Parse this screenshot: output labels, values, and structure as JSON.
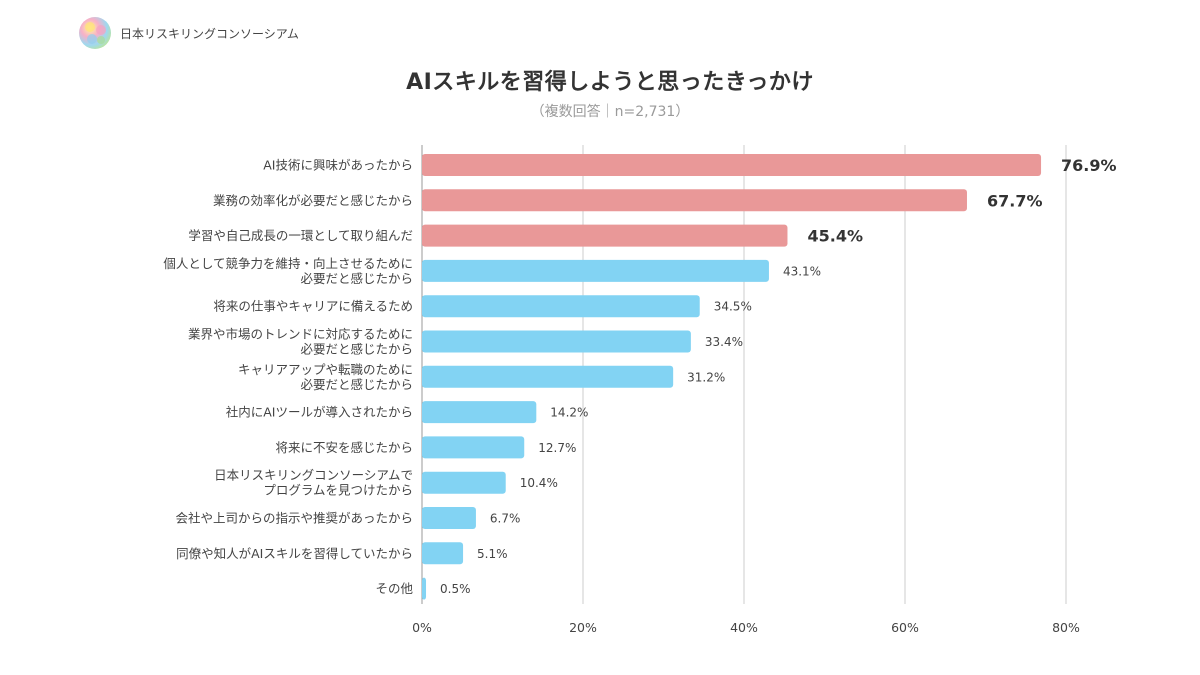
{
  "brand": {
    "name": "日本リスキリングコンソーシアム",
    "logo_icon": "colorful-sphere-logo"
  },
  "chart_data": {
    "type": "bar",
    "orientation": "horizontal",
    "title": "AIスキルを習得しようと思ったきっかけ",
    "subtitle": "（複数回答｜n=2,731）",
    "categories": [
      [
        "AI技術に興味があったから"
      ],
      [
        "業務の効率化が必要だと感じたから"
      ],
      [
        "学習や自己成長の一環として取り組んだ"
      ],
      [
        "個人として競争力を維持・向上させるために",
        "必要だと感じたから"
      ],
      [
        "将来の仕事やキャリアに備えるため"
      ],
      [
        "業界や市場のトレンドに対応するために",
        "必要だと感じたから"
      ],
      [
        "キャリアアップや転職のために",
        "必要だと感じたから"
      ],
      [
        "社内にAIツールが導入されたから"
      ],
      [
        "将来に不安を感じたから"
      ],
      [
        "日本リスキリングコンソーシアムで",
        "プログラムを見つけたから"
      ],
      [
        "会社や上司からの指示や推奨があったから"
      ],
      [
        "同僚や知人がAIスキルを習得していたから"
      ],
      [
        "その他"
      ]
    ],
    "values": [
      76.9,
      67.7,
      45.4,
      43.1,
      34.5,
      33.4,
      31.2,
      14.2,
      12.7,
      10.4,
      6.7,
      5.1,
      0.5
    ],
    "value_labels": [
      "76.9%",
      "67.7%",
      "45.4%",
      "43.1%",
      "34.5%",
      "33.4%",
      "31.2%",
      "14.2%",
      "12.7%",
      "10.4%",
      "6.7%",
      "5.1%",
      "0.5%"
    ],
    "highlight_count": 3,
    "xlim": [
      0,
      80
    ],
    "xticks": [
      0,
      20,
      40,
      60,
      80
    ],
    "xtick_labels": [
      "0%",
      "20%",
      "40%",
      "60%",
      "80%"
    ],
    "grid": true,
    "colors": {
      "highlight": "#e99898",
      "default": "#82d3f3",
      "grid": "#cccccc"
    }
  }
}
